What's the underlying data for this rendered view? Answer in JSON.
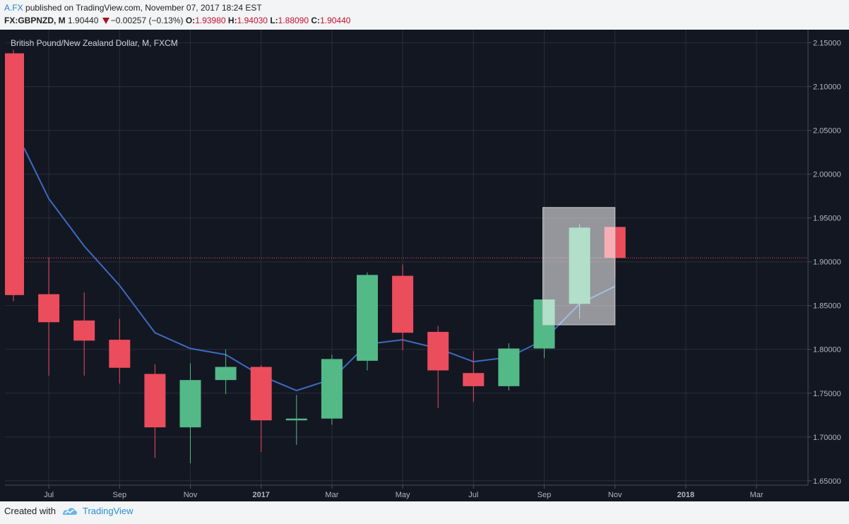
{
  "header": {
    "author": "A.FX",
    "published_text": "published on TradingView.com, November 07, 2017 18:24 EST",
    "symbol": "FX:GBPNZD, M",
    "price": "1.90440",
    "change": "−0.00257 (−0.13%)",
    "open_label": "O:",
    "open": "1.93980",
    "high_label": "H:",
    "high": "1.94030",
    "low_label": "L:",
    "low": "1.88090",
    "close_label": "C:",
    "close": "1.90440"
  },
  "footer": {
    "created_with": "Created with",
    "brand": "TradingView"
  },
  "colors": {
    "background": "#131722",
    "up": "#53b987",
    "down": "#eb4d5c",
    "ma_line": "#3d6bbf",
    "grid": "#2a2e39",
    "price_line": "#eb4d5c"
  },
  "chart_data": {
    "type": "candlestick",
    "title": "British Pound/New Zealand Dollar, M, FXCM",
    "ylim": [
      1.645,
      2.165
    ],
    "y_ticks": [
      "1.65000",
      "1.70000",
      "1.75000",
      "1.80000",
      "1.85000",
      "1.90000",
      "1.95000",
      "2.00000",
      "2.05000",
      "2.10000",
      "2.15000"
    ],
    "x_ticks": [
      {
        "label": "Jul",
        "index": 1
      },
      {
        "label": "Sep",
        "index": 3
      },
      {
        "label": "Nov",
        "index": 5
      },
      {
        "label": "2017",
        "index": 7,
        "bold": true
      },
      {
        "label": "Mar",
        "index": 9
      },
      {
        "label": "May",
        "index": 11
      },
      {
        "label": "Jul",
        "index": 13
      },
      {
        "label": "Sep",
        "index": 15
      },
      {
        "label": "Nov",
        "index": 17
      },
      {
        "label": "2018",
        "index": 19,
        "bold": true
      },
      {
        "label": "Mar",
        "index": 21
      }
    ],
    "candles": [
      {
        "month": "Jun 2016",
        "o": 2.138,
        "h": 2.142,
        "l": 1.855,
        "c": 1.862
      },
      {
        "month": "Jul 2016",
        "o": 1.863,
        "h": 1.905,
        "l": 1.77,
        "c": 1.831
      },
      {
        "month": "Aug 2016",
        "o": 1.833,
        "h": 1.865,
        "l": 1.77,
        "c": 1.81
      },
      {
        "month": "Sep 2016",
        "o": 1.811,
        "h": 1.835,
        "l": 1.761,
        "c": 1.779
      },
      {
        "month": "Oct 2016",
        "o": 1.772,
        "h": 1.783,
        "l": 1.676,
        "c": 1.711
      },
      {
        "month": "Nov 2016",
        "o": 1.711,
        "h": 1.784,
        "l": 1.67,
        "c": 1.765
      },
      {
        "month": "Dec 2016",
        "o": 1.765,
        "h": 1.8,
        "l": 1.749,
        "c": 1.78
      },
      {
        "month": "Jan 2017",
        "o": 1.78,
        "h": 1.782,
        "l": 1.683,
        "c": 1.719
      },
      {
        "month": "Feb 2017",
        "o": 1.719,
        "h": 1.748,
        "l": 1.691,
        "c": 1.721
      },
      {
        "month": "Mar 2017",
        "o": 1.721,
        "h": 1.794,
        "l": 1.714,
        "c": 1.789
      },
      {
        "month": "Apr 2017",
        "o": 1.787,
        "h": 1.888,
        "l": 1.776,
        "c": 1.885
      },
      {
        "month": "May 2017",
        "o": 1.884,
        "h": 1.897,
        "l": 1.799,
        "c": 1.819
      },
      {
        "month": "Jun 2017",
        "o": 1.82,
        "h": 1.827,
        "l": 1.733,
        "c": 1.776
      },
      {
        "month": "Jul 2017",
        "o": 1.773,
        "h": 1.798,
        "l": 1.74,
        "c": 1.758
      },
      {
        "month": "Aug 2017",
        "o": 1.758,
        "h": 1.807,
        "l": 1.753,
        "c": 1.801
      },
      {
        "month": "Sep 2017",
        "o": 1.801,
        "h": 1.857,
        "l": 1.79,
        "c": 1.857
      },
      {
        "month": "Oct 2017",
        "o": 1.852,
        "h": 1.943,
        "l": 1.835,
        "c": 1.939
      },
      {
        "month": "Nov 2017",
        "o": 1.9398,
        "h": 1.9403,
        "l": 1.8809,
        "c": 1.9044
      }
    ],
    "moving_average": [
      {
        "index": 0.3,
        "value": 2.03
      },
      {
        "index": 1,
        "value": 1.972
      },
      {
        "index": 2,
        "value": 1.918
      },
      {
        "index": 3,
        "value": 1.873
      },
      {
        "index": 4,
        "value": 1.819
      },
      {
        "index": 5,
        "value": 1.801
      },
      {
        "index": 6,
        "value": 1.794
      },
      {
        "index": 7,
        "value": 1.77
      },
      {
        "index": 8,
        "value": 1.753
      },
      {
        "index": 9,
        "value": 1.766
      },
      {
        "index": 10,
        "value": 1.806
      },
      {
        "index": 11,
        "value": 1.811
      },
      {
        "index": 12,
        "value": 1.801
      },
      {
        "index": 13,
        "value": 1.786
      },
      {
        "index": 14,
        "value": 1.791
      },
      {
        "index": 15,
        "value": 1.811
      },
      {
        "index": 16,
        "value": 1.852
      },
      {
        "index": 17,
        "value": 1.872
      }
    ],
    "last_price": 1.9044,
    "highlight": {
      "from_index": 15,
      "to_index": 17,
      "y_top": 1.962,
      "y_bottom": 1.828
    }
  }
}
